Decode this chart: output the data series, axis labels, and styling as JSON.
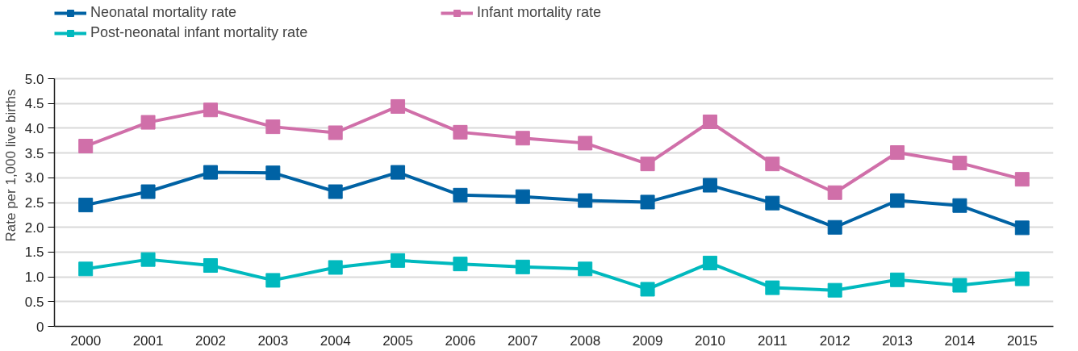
{
  "chart_data": {
    "type": "line",
    "ylabel": "Rate per 1,000 live births",
    "categories": [
      "2000",
      "2001",
      "2002",
      "2003",
      "2004",
      "2005",
      "2006",
      "2007",
      "2008",
      "2009",
      "2010",
      "2011",
      "2012",
      "2013",
      "2014",
      "2015"
    ],
    "series": [
      {
        "name": "Neonatal mortality rate",
        "color": "#0062a4",
        "values": [
          2.45,
          2.72,
          3.11,
          3.1,
          2.72,
          3.11,
          2.65,
          2.62,
          2.54,
          2.51,
          2.85,
          2.49,
          2.0,
          2.54,
          2.44,
          1.99
        ]
      },
      {
        "name": "Infant mortality rate",
        "color": "#d06fa9",
        "values": [
          3.64,
          4.12,
          4.37,
          4.03,
          3.91,
          4.44,
          3.92,
          3.8,
          3.7,
          3.28,
          4.13,
          3.28,
          2.7,
          3.51,
          3.3,
          2.97
        ]
      },
      {
        "name": "Post-neonatal infant mortality rate",
        "color": "#00b9be",
        "values": [
          1.16,
          1.35,
          1.23,
          0.93,
          1.19,
          1.33,
          1.26,
          1.2,
          1.16,
          0.75,
          1.28,
          0.78,
          0.73,
          0.94,
          0.83,
          0.96
        ]
      }
    ],
    "ylim": [
      0,
      5
    ],
    "yticks": [
      0,
      {
        "value": 0.5,
        "label": "0.5"
      },
      {
        "value": 1,
        "label": "1.0"
      },
      {
        "value": 1.5,
        "label": "1.5"
      },
      {
        "value": 2,
        "label": "2.0"
      },
      {
        "value": 2.5,
        "label": "2.5"
      },
      {
        "value": 3,
        "label": "3.0"
      },
      {
        "value": 3.5,
        "label": "3.5"
      },
      {
        "value": 4,
        "label": "4.0"
      },
      {
        "value": 4.5,
        "label": "4.5"
      },
      {
        "value": 5,
        "label": "5.0"
      }
    ],
    "grid": "y",
    "legend": "top left",
    "marker": "square",
    "line_style": "solid"
  }
}
